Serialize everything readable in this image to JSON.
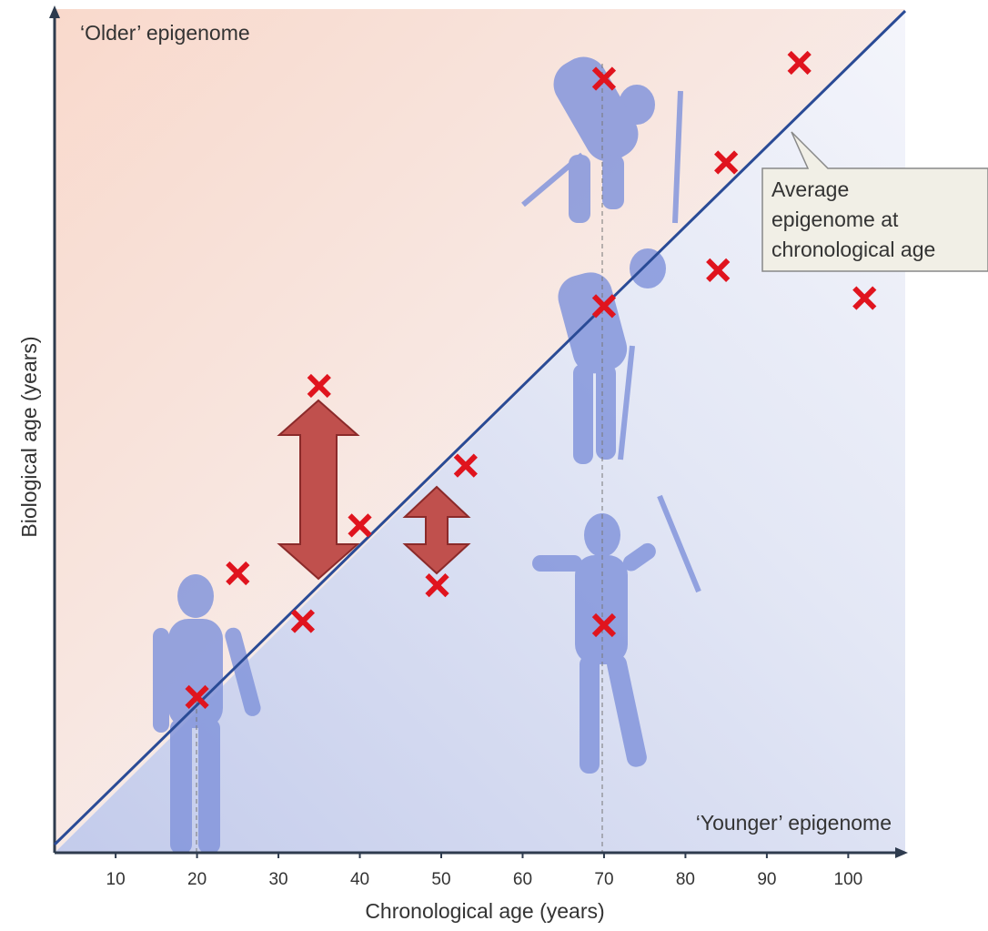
{
  "chart_data": {
    "type": "scatter",
    "x_label": "Chronological age (years)",
    "y_label": "Biological age (years)",
    "annotations": {
      "older": "‘Older’ epigenome",
      "younger": "‘Younger’ epigenome",
      "callout": [
        "Average",
        "epigenome at",
        "chronological age"
      ]
    },
    "x": [
      20,
      25,
      33,
      35,
      40,
      49.5,
      53,
      70,
      70,
      70,
      85,
      84,
      94,
      102
    ],
    "series": [
      {
        "color": "#e0141e",
        "values": [
          21,
          36.5,
          30.5,
          60,
          42.5,
          35,
          50,
          98.5,
          70,
          30,
          88,
          74.5,
          100.5,
          71
        ]
      }
    ],
    "average_line": {
      "color": "#2a4b96",
      "x": [
        2.5,
        107
      ],
      "y": [
        2.5,
        107
      ]
    },
    "xlim": [
      2.5,
      107
    ],
    "ylim": [
      2.5,
      107
    ],
    "xticks": [
      10,
      20,
      30,
      40,
      50,
      60,
      70,
      80,
      90,
      100
    ]
  }
}
